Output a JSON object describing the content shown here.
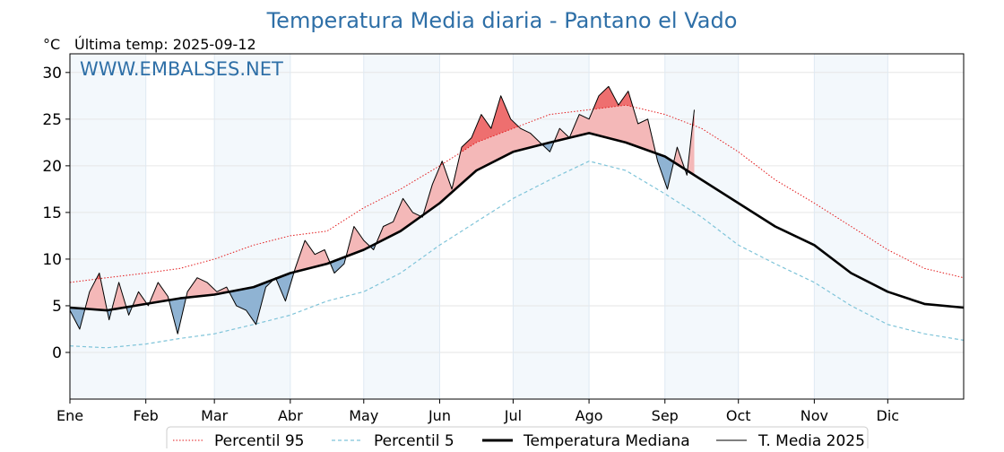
{
  "chart_data": {
    "type": "line",
    "title": "Temperatura Media diaria - Pantano el Vado",
    "subtitle": "Última temp: 2025-09-12",
    "ylabel": "°C",
    "watermark": "WWW.EMBALSES.NET",
    "ylim": [
      -5,
      32
    ],
    "xlim_days": [
      0,
      365
    ],
    "y_ticks": [
      0,
      5,
      10,
      15,
      20,
      25,
      30
    ],
    "month_labels": [
      "Ene",
      "Feb",
      "Mar",
      "Abr",
      "May",
      "Jun",
      "Jul",
      "Ago",
      "Sep",
      "Oct",
      "Nov",
      "Dic"
    ],
    "month_starts": [
      0,
      31,
      59,
      90,
      120,
      151,
      181,
      212,
      243,
      273,
      304,
      334
    ],
    "grid": true,
    "legend_position": "bottom-center",
    "series": [
      {
        "name": "Percentil 95",
        "color": "#e31a1c",
        "style": "dotted",
        "x": [
          0,
          15,
          31,
          45,
          59,
          75,
          90,
          105,
          120,
          135,
          151,
          166,
          181,
          196,
          212,
          227,
          243,
          258,
          273,
          288,
          304,
          319,
          334,
          349,
          365
        ],
        "y": [
          7.5,
          8.0,
          8.5,
          9.0,
          10.0,
          11.5,
          12.5,
          13.0,
          15.5,
          17.5,
          20.0,
          22.5,
          24.0,
          25.5,
          26.0,
          26.5,
          25.5,
          24.0,
          21.5,
          18.5,
          16.0,
          13.5,
          11.0,
          9.0,
          8.0
        ]
      },
      {
        "name": "Percentil 5",
        "color": "#7fc4d9",
        "style": "dashed",
        "x": [
          0,
          15,
          31,
          45,
          59,
          75,
          90,
          105,
          120,
          135,
          151,
          166,
          181,
          196,
          212,
          227,
          243,
          258,
          273,
          288,
          304,
          319,
          334,
          349,
          365
        ],
        "y": [
          0.7,
          0.5,
          0.9,
          1.5,
          2.0,
          3.0,
          4.0,
          5.5,
          6.5,
          8.5,
          11.5,
          14.0,
          16.5,
          18.5,
          20.5,
          19.5,
          17.0,
          14.5,
          11.5,
          9.5,
          7.5,
          5.0,
          3.0,
          2.0,
          1.3
        ]
      },
      {
        "name": "Temperatura Mediana",
        "color": "#000000",
        "style": "solid-thick",
        "x": [
          0,
          15,
          31,
          45,
          59,
          75,
          90,
          105,
          120,
          135,
          151,
          166,
          181,
          196,
          212,
          227,
          243,
          258,
          273,
          288,
          304,
          319,
          334,
          349,
          365
        ],
        "y": [
          4.8,
          4.5,
          5.2,
          5.8,
          6.2,
          7.0,
          8.5,
          9.5,
          11.0,
          13.0,
          16.0,
          19.5,
          21.5,
          22.5,
          23.5,
          22.5,
          21.0,
          18.5,
          16.0,
          13.5,
          11.5,
          8.5,
          6.5,
          5.2,
          4.8
        ]
      },
      {
        "name": "T. Media 2025",
        "color": "#000000",
        "style": "solid-thin",
        "x": [
          0,
          4,
          8,
          12,
          16,
          20,
          24,
          28,
          32,
          36,
          40,
          44,
          48,
          52,
          56,
          60,
          64,
          68,
          72,
          76,
          80,
          84,
          88,
          92,
          96,
          100,
          104,
          108,
          112,
          116,
          120,
          124,
          128,
          132,
          136,
          140,
          144,
          148,
          152,
          156,
          160,
          164,
          168,
          172,
          176,
          180,
          184,
          188,
          192,
          196,
          200,
          204,
          208,
          212,
          216,
          220,
          224,
          228,
          232,
          236,
          240,
          244,
          248,
          252,
          255
        ],
        "y": [
          4.5,
          2.5,
          6.5,
          8.5,
          3.5,
          7.5,
          4.0,
          6.5,
          5.0,
          7.5,
          6.0,
          2.0,
          6.5,
          8.0,
          7.5,
          6.5,
          7.0,
          5.0,
          4.5,
          3.0,
          7.0,
          8.0,
          5.5,
          9.0,
          12.0,
          10.5,
          11.0,
          8.5,
          9.5,
          13.5,
          12.0,
          11.0,
          13.5,
          14.0,
          16.5,
          15.0,
          14.5,
          18.0,
          20.5,
          17.5,
          22.0,
          23.0,
          25.5,
          24.0,
          27.5,
          25.0,
          24.0,
          23.5,
          22.5,
          21.5,
          24.0,
          23.0,
          25.5,
          25.0,
          27.5,
          28.5,
          26.5,
          28.0,
          24.5,
          25.0,
          20.5,
          17.5,
          22.0,
          19.0,
          26.0
        ]
      }
    ]
  }
}
